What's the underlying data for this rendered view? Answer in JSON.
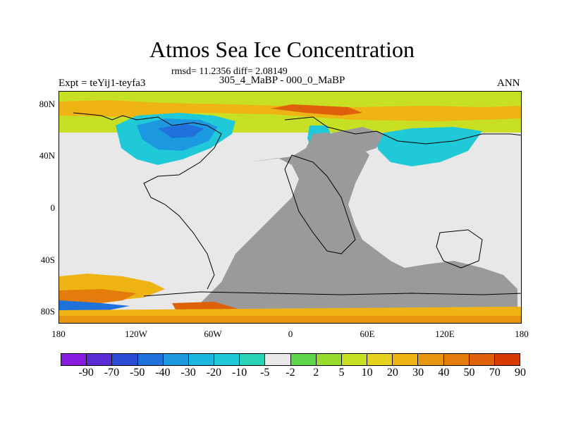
{
  "title": "Atmos Sea Ice Concentration",
  "stats": "rmsd= 11.2356 diff= 2.08149",
  "subtitle": "305_4_MaBP - 000_0_MaBP",
  "left_label": "Expt = teYij1-teyfa3",
  "right_label": "ANN",
  "y_ticks": [
    "80N",
    "40N",
    "0",
    "40S",
    "80S"
  ],
  "x_ticks": [
    "180",
    "120W",
    "60W",
    "0",
    "60E",
    "120E",
    "180"
  ],
  "colorbar": {
    "labels": [
      "-90",
      "-70",
      "-50",
      "-40",
      "-30",
      "-20",
      "-10",
      "-5",
      "-2",
      "2",
      "5",
      "10",
      "20",
      "30",
      "40",
      "50",
      "70",
      "90"
    ],
    "colors": [
      "#8a1ee0",
      "#5a2cd6",
      "#2c4cd8",
      "#1f72dc",
      "#1c98e0",
      "#1cb6e0",
      "#1fc9d8",
      "#2ad2b6",
      "#e8e8e8",
      "#5ed64a",
      "#96dc2c",
      "#c8e024",
      "#e6d21c",
      "#eeb414",
      "#e8960e",
      "#e47c0a",
      "#de6008",
      "#d83a06"
    ]
  }
}
